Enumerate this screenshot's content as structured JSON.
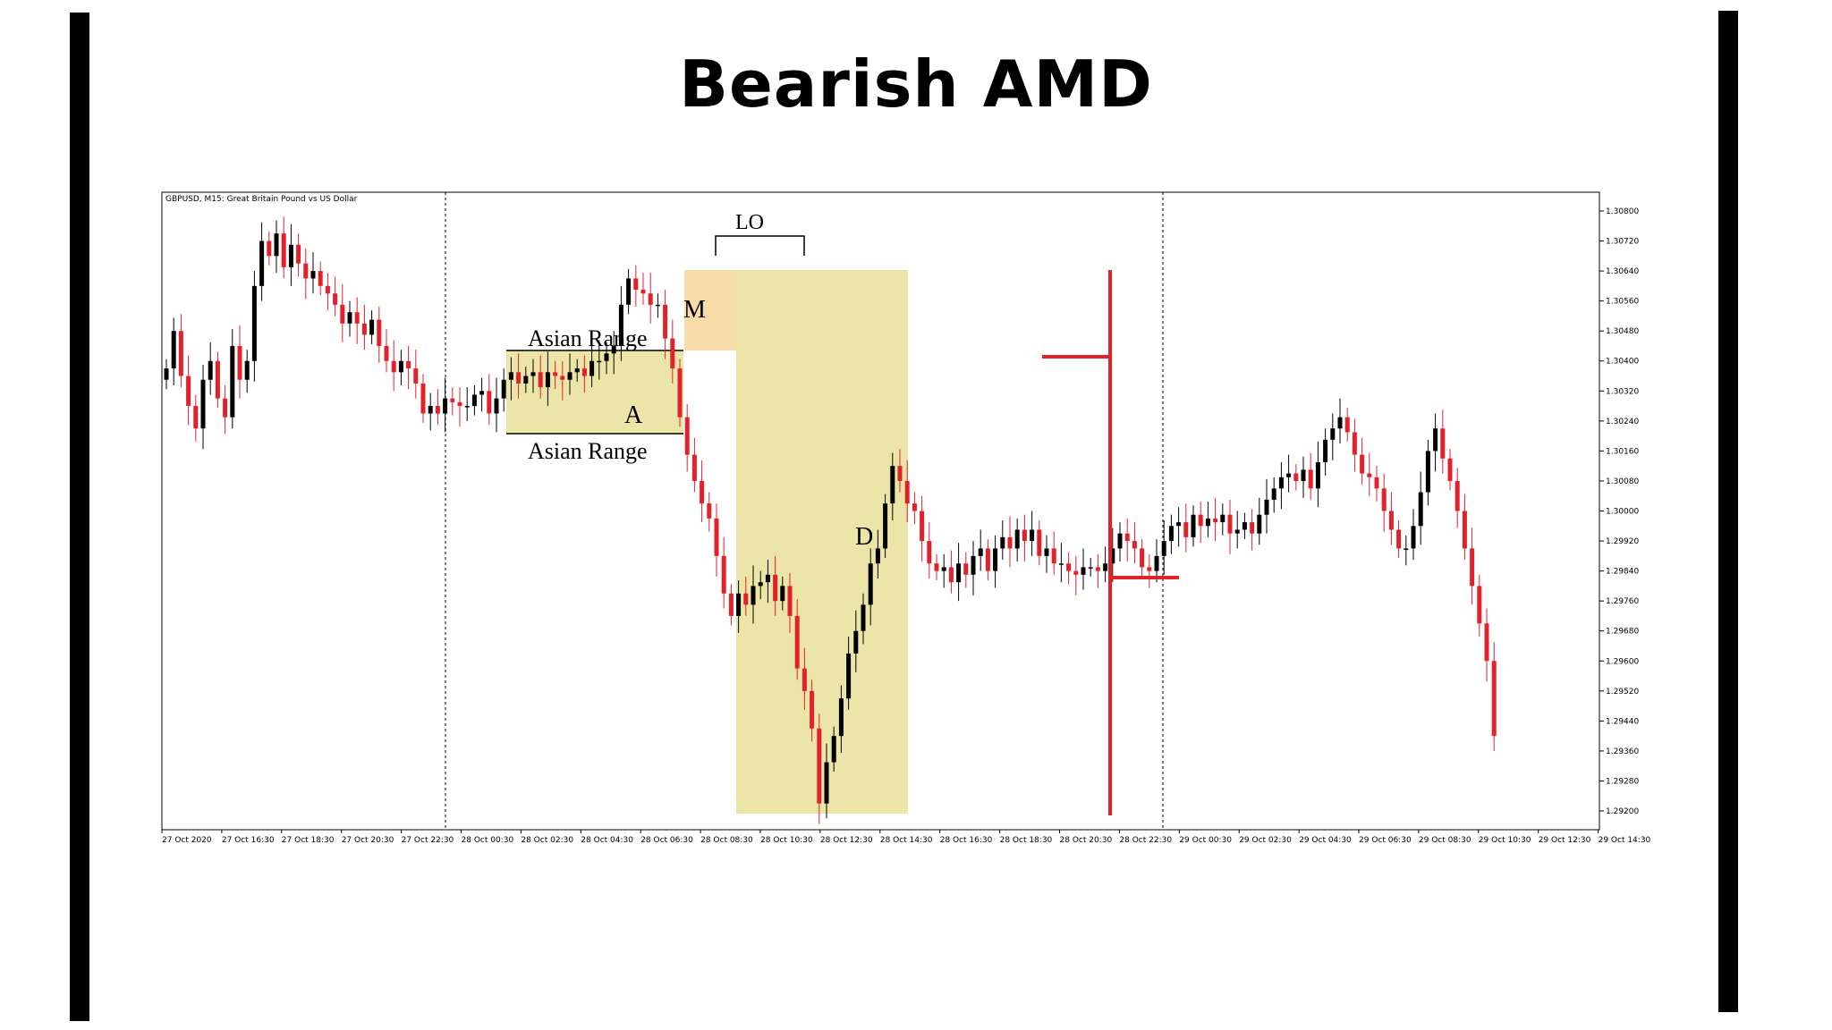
{
  "page": {
    "title": "Bearish AMD"
  },
  "chart_data": {
    "type": "candlestick",
    "header": "GBPUSD, M15:  Great Britain Pound vs US Dollar",
    "y_ticks": [
      "1.30800",
      "1.30720",
      "1.30640",
      "1.30560",
      "1.30480",
      "1.30400",
      "1.30320",
      "1.30240",
      "1.30160",
      "1.30080",
      "1.30000",
      "1.29920",
      "1.29840",
      "1.29760",
      "1.29680",
      "1.29600",
      "1.29520",
      "1.29440",
      "1.29360",
      "1.29280",
      "1.29200"
    ],
    "x_ticks": [
      "27 Oct 2020",
      "27 Oct 16:30",
      "27 Oct 18:30",
      "27 Oct 20:30",
      "27 Oct 22:30",
      "28 Oct 00:30",
      "28 Oct 02:30",
      "28 Oct 04:30",
      "28 Oct 06:30",
      "28 Oct 08:30",
      "28 Oct 10:30",
      "28 Oct 12:30",
      "28 Oct 14:30",
      "28 Oct 16:30",
      "28 Oct 18:30",
      "28 Oct 20:30",
      "28 Oct 22:30",
      "29 Oct 00:30",
      "29 Oct 02:30",
      "29 Oct 04:30",
      "29 Oct 06:30",
      "29 Oct 08:30",
      "29 Oct 10:30",
      "29 Oct 12:30",
      "29 Oct 14:30"
    ],
    "ylim": [
      1.2915,
      1.3085
    ],
    "grid": false,
    "colors": {
      "bull": "#000000",
      "bear": "#e3212b",
      "zone": "#ece5a8",
      "zone_lo": "#f7dcaa",
      "marker": "#e3212b"
    },
    "closes": [
      1.3038,
      1.3048,
      1.3036,
      1.3028,
      1.3022,
      1.3035,
      1.304,
      1.303,
      1.3025,
      1.3044,
      1.3035,
      1.304,
      1.306,
      1.3072,
      1.3068,
      1.3074,
      1.3065,
      1.3071,
      1.3066,
      1.3062,
      1.3064,
      1.306,
      1.3058,
      1.3055,
      1.305,
      1.3053,
      1.305,
      1.3047,
      1.3051,
      1.3044,
      1.304,
      1.3037,
      1.304,
      1.3038,
      1.3034,
      1.3026,
      1.3028,
      1.3026,
      1.303,
      1.3029,
      1.3028,
      1.3028,
      1.3031,
      1.3032,
      1.3026,
      1.303,
      1.3035,
      1.3037,
      1.3034,
      1.3036,
      1.3037,
      1.3033,
      1.3037,
      1.3036,
      1.3035,
      1.3037,
      1.3038,
      1.3036,
      1.304,
      1.304,
      1.3042,
      1.3044,
      1.3055,
      1.3062,
      1.3059,
      1.3058,
      1.3055,
      1.3055,
      1.3046,
      1.3038,
      1.3025,
      1.3015,
      1.3008,
      1.3002,
      1.2998,
      1.2988,
      1.2978,
      1.2972,
      1.2978,
      1.2975,
      1.298,
      1.2981,
      1.2983,
      1.2976,
      1.298,
      1.2972,
      1.2958,
      1.2952,
      1.2942,
      1.2922,
      1.2933,
      1.294,
      1.295,
      1.2962,
      1.2968,
      1.2975,
      1.2986,
      1.299,
      1.3002,
      1.3012,
      1.3008,
      1.3002,
      1.3,
      1.2992,
      1.2986,
      1.2984,
      1.2985,
      1.2981,
      1.2986,
      1.2983,
      1.2988,
      1.299,
      1.2984,
      1.299,
      1.2993,
      1.299,
      1.2995,
      1.2992,
      1.2995,
      1.2988,
      1.299,
      1.2986,
      1.2986,
      1.2984,
      1.2983,
      1.2985,
      1.2985,
      1.2984,
      1.2986,
      1.299,
      1.2994,
      1.2992,
      1.299,
      1.2985,
      1.2984,
      1.2988,
      1.2992,
      1.2996,
      1.2997,
      1.2993,
      1.2999,
      1.2996,
      1.2998,
      1.2997,
      1.2999,
      1.2994,
      1.2995,
      1.2997,
      1.2994,
      1.2999,
      1.3003,
      1.3006,
      1.3009,
      1.301,
      1.3008,
      1.3011,
      1.3006,
      1.3013,
      1.3019,
      1.3022,
      1.3025,
      1.3021,
      1.3015,
      1.301,
      1.3009,
      1.3006,
      1.3,
      1.2995,
      1.299,
      1.299,
      1.2996,
      1.3005,
      1.3016,
      1.3022,
      1.3014,
      1.3008,
      1.3,
      1.299,
      1.298,
      1.297,
      1.296,
      1.294
    ],
    "annotations": {
      "asian_range_top": "Asian Range",
      "asian_range_bottom": "Asian Range",
      "a": "A",
      "m": "M",
      "lo": "LO",
      "d": "D"
    }
  }
}
